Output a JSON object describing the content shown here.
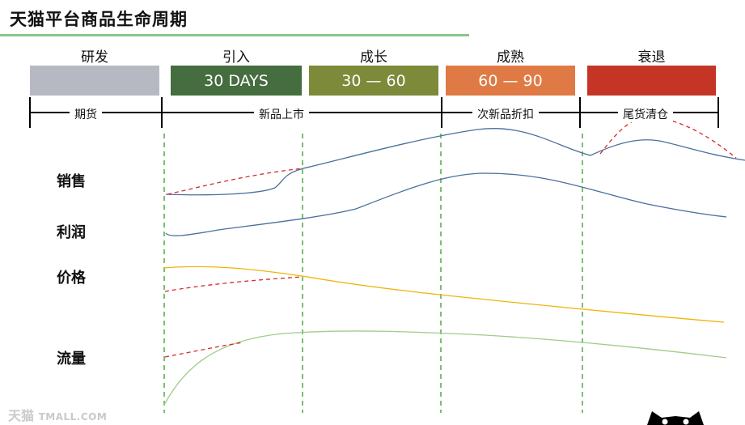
{
  "title": "天猫平台商品生命周期",
  "stages": [
    {
      "name": "研发",
      "box": "",
      "color": "#b7b9c2"
    },
    {
      "name": "引入",
      "box": "30 DAYS",
      "color": "#456d3f"
    },
    {
      "name": "成长",
      "box": "30 — 60",
      "color": "#7d8a39"
    },
    {
      "name": "成熟",
      "box": "60 — 90",
      "color": "#e07a45"
    },
    {
      "name": "衰退",
      "box": "",
      "color": "#c43525"
    }
  ],
  "periods": [
    "期货",
    "新品上市",
    "次新品折扣",
    "尾货清仓"
  ],
  "metrics": {
    "sales": "销售",
    "profit": "利润",
    "price": "价格",
    "traffic": "流量"
  },
  "colors": {
    "blue_line": "#4a6f9c",
    "price_line": "#f0b40a",
    "traffic_line": "#9fcc8a",
    "dashed_red": "#d62b2b",
    "dashed_green": "#59b04c"
  },
  "watermark": {
    "logo": "天猫",
    "text": "TMALL.COM"
  }
}
